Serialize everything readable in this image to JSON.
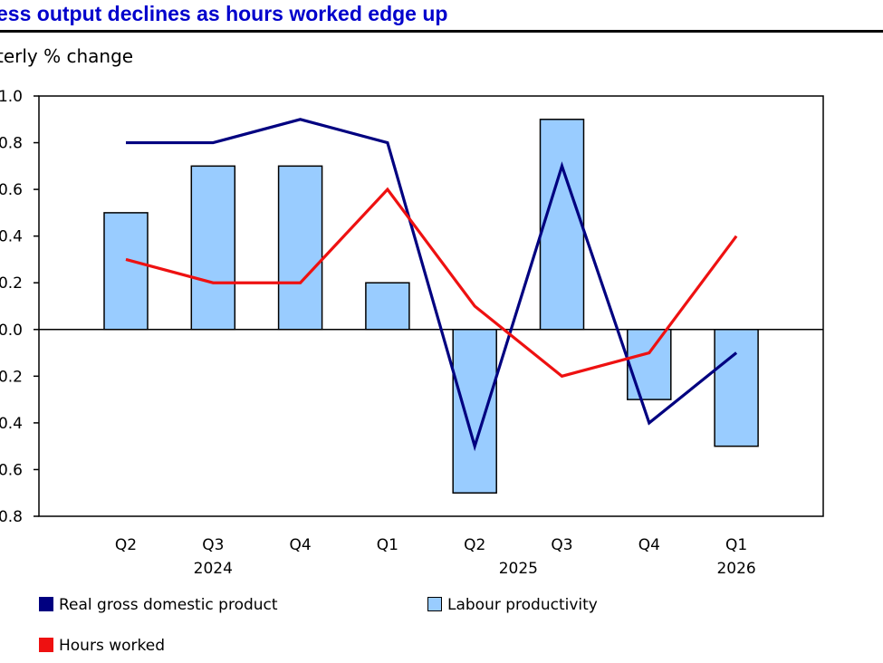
{
  "chart_data": {
    "type": "bar",
    "title": "ess output declines as hours worked edge up",
    "ylabel": "terly % change",
    "ylim": [
      -0.8,
      1.0
    ],
    "yticks": [
      1.0,
      0.8,
      0.6,
      0.4,
      0.2,
      0.0,
      -0.2,
      -0.4,
      -0.6,
      -0.8
    ],
    "ytick_labels": [
      "1.0",
      "0.8",
      "0.6",
      "0.4",
      "0.2",
      "0.0",
      "0.2",
      "0.4",
      "0.6",
      "0.8"
    ],
    "categories": [
      "Q2",
      "Q3",
      "Q4",
      "Q1",
      "Q2",
      "Q3",
      "Q4",
      "Q1"
    ],
    "year_labels": [
      {
        "label": "2024",
        "category_index": 1
      },
      {
        "label": "2025",
        "category_index": 4.5
      },
      {
        "label": "2026",
        "category_index": 7
      }
    ],
    "grid": false,
    "legend_position": "bottom",
    "series": [
      {
        "name": "Real gross domestic product",
        "kind": "line",
        "color": "#000080",
        "values": [
          0.8,
          0.8,
          0.9,
          0.8,
          -0.5,
          0.7,
          -0.4,
          -0.1
        ]
      },
      {
        "name": "Labour productivity",
        "kind": "bar",
        "color": "#99ccff",
        "values": [
          0.5,
          0.7,
          0.7,
          0.2,
          -0.7,
          0.9,
          -0.3,
          -0.5
        ]
      },
      {
        "name": "Hours worked",
        "kind": "line",
        "color": "#ee1111",
        "values": [
          0.3,
          0.2,
          0.2,
          0.6,
          0.1,
          -0.2,
          -0.1,
          0.4
        ]
      }
    ]
  }
}
